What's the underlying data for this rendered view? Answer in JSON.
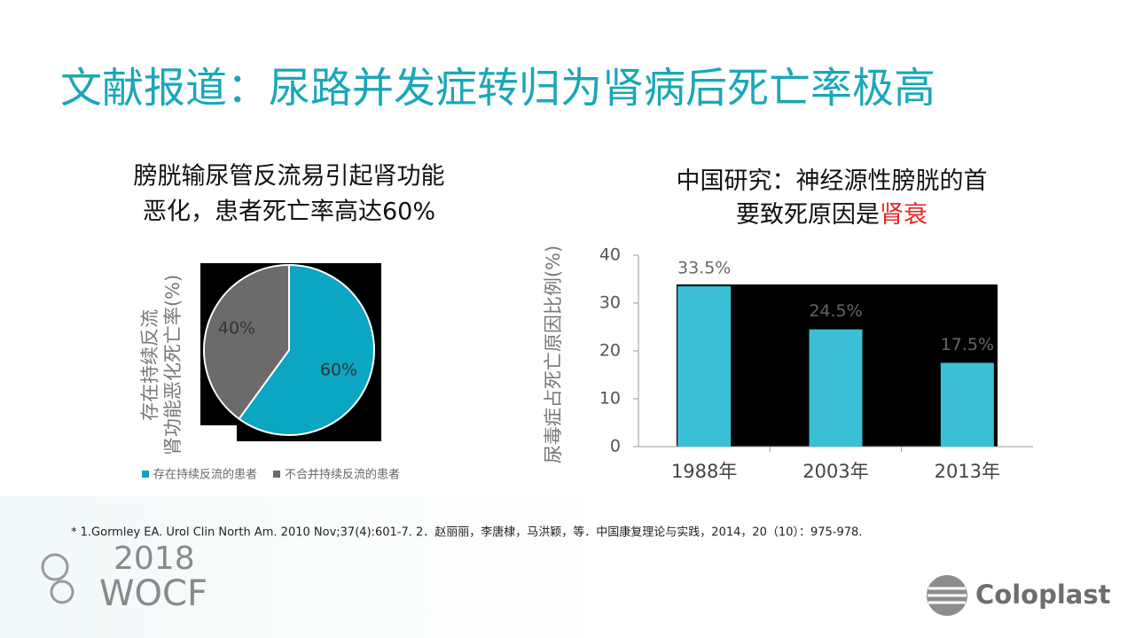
{
  "title": "文献报道：尿路并发症转归为肾病后死亡率极高",
  "chart_data": [
    {
      "type": "pie",
      "title_lines": [
        "膀胱输尿管反流易引起肾功能",
        "恶化，患者死亡率高达60%"
      ],
      "ylabel_lines": [
        "存在持续反流",
        "肾功能恶化死亡率(%)"
      ],
      "categories": [
        "存在持续反流的患者",
        "不合并持续反流的患者"
      ],
      "values": [
        60,
        40
      ],
      "value_labels": [
        "60%",
        "40%"
      ],
      "colors": [
        "#0aa6c2",
        "#6b6b6b"
      ]
    },
    {
      "type": "bar",
      "title_lines": [
        [
          {
            "text": "中国研究：神经源性膀胱的首"
          }
        ],
        [
          {
            "text": "要致死原因是"
          },
          {
            "text": "肾衰",
            "color": "#e8262a"
          }
        ]
      ],
      "ylabel": "尿毒症占死亡原因比例(%)",
      "categories": [
        "1988年",
        "2003年",
        "2013年"
      ],
      "values": [
        33.5,
        24.5,
        17.5
      ],
      "value_labels": [
        "33.5%",
        "24.5%",
        "17.5%"
      ],
      "color": "#3bbfd6",
      "ylim": [
        0,
        40
      ],
      "yticks": [
        0,
        10,
        20,
        30,
        40
      ]
    }
  ],
  "footnote": "* 1.Gormley EA. Urol Clin North Am. 2010 Nov;37(4):601-7. 2．赵丽丽，李唐棣，马洪颖，等．中国康复理论与实践，2014，20（10）：975-978.",
  "logos": {
    "year": "2018",
    "event": "WOCF",
    "company": "Coloplast"
  }
}
